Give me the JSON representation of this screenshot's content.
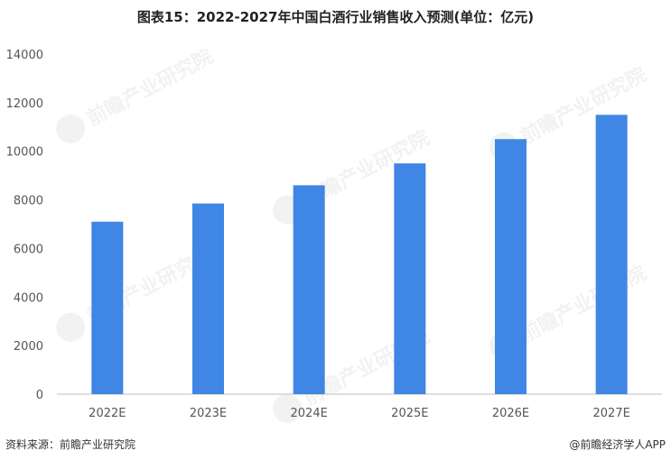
{
  "chart_data": {
    "type": "bar",
    "title": "图表15：2022-2027年中国白酒行业销售收入预测(单位：亿元)",
    "categories": [
      "2022E",
      "2023E",
      "2024E",
      "2025E",
      "2026E",
      "2027E"
    ],
    "values": [
      7100,
      7850,
      8600,
      9500,
      10500,
      11500
    ],
    "yticks": [
      0,
      2000,
      4000,
      6000,
      8000,
      10000,
      12000,
      14000
    ],
    "ylim": [
      0,
      14000
    ],
    "bar_color": "#3f86e5",
    "grid": false,
    "legend": "none"
  },
  "footer": {
    "source": "资料来源：前瞻产业研究院",
    "brand": "@前瞻经济学人APP"
  },
  "watermark": "前瞻产业研究院"
}
